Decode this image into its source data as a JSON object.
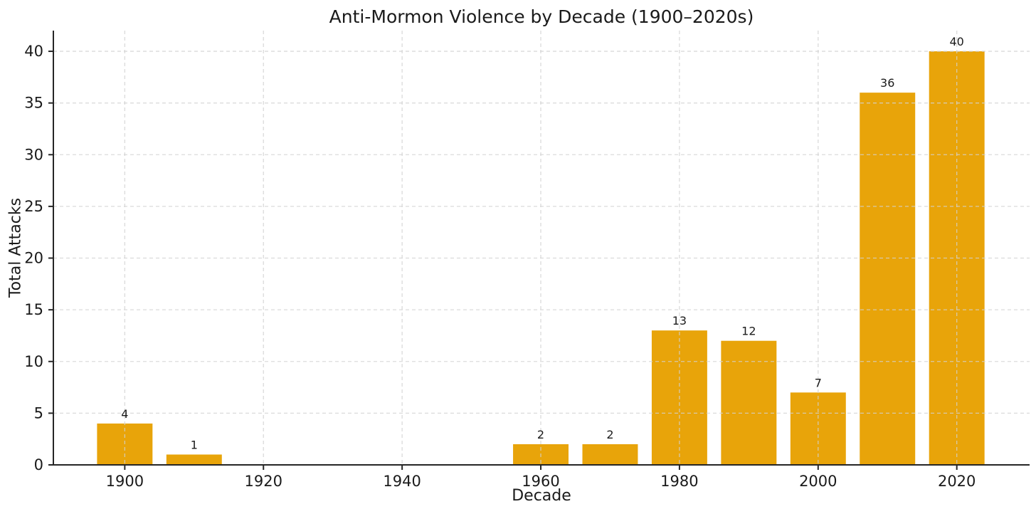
{
  "chart_data": {
    "type": "bar",
    "title": "Anti-Mormon Violence by Decade (1900–2020s)",
    "xlabel": "Decade",
    "ylabel": "Total Attacks",
    "categories": [
      1900,
      1910,
      1920,
      1930,
      1940,
      1950,
      1960,
      1970,
      1980,
      1990,
      2000,
      2010,
      2020
    ],
    "values": [
      4,
      1,
      0,
      0,
      0,
      0,
      2,
      2,
      13,
      12,
      7,
      36,
      40
    ],
    "bar_value_labels": [
      "4",
      "1",
      "",
      "",
      "",
      "",
      "2",
      "2",
      "13",
      "12",
      "7",
      "36",
      "40"
    ],
    "x_ticks": [
      1900,
      1920,
      1940,
      1960,
      1980,
      2000,
      2020
    ],
    "x_tick_labels": [
      "1900",
      "1920",
      "1940",
      "1960",
      "1980",
      "2000",
      "2020"
    ],
    "y_ticks": [
      0,
      5,
      10,
      15,
      20,
      25,
      30,
      35,
      40
    ],
    "y_tick_labels": [
      "0",
      "5",
      "10",
      "15",
      "20",
      "25",
      "30",
      "35",
      "40"
    ],
    "xlim": [
      1889.7,
      2030.5
    ],
    "ylim": [
      0,
      42
    ],
    "bar_width_years": 8,
    "grid": true,
    "grid_style": "dashed",
    "legend": "none",
    "bar_color": "#E8A40A",
    "grid_color": "#D2D2D2",
    "axis_color": "#262626",
    "text_color": "#1a1a1a"
  }
}
